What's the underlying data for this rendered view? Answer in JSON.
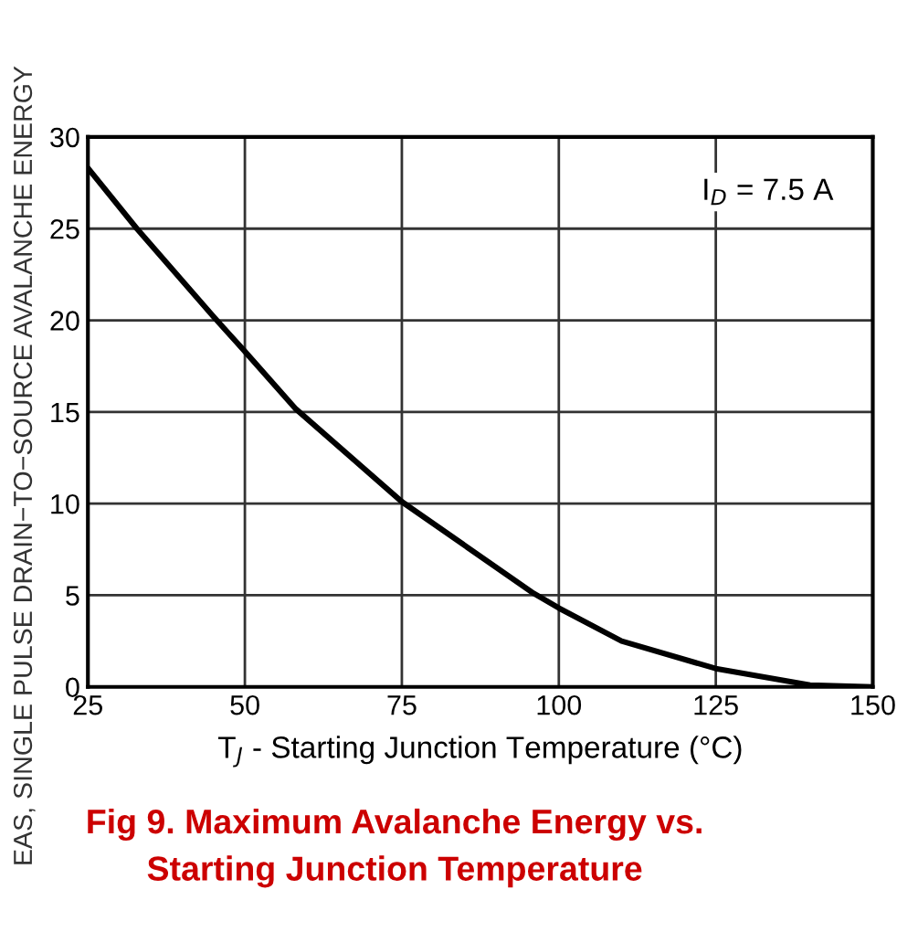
{
  "chart_data": {
    "type": "line",
    "title": "Fig 9. Maximum Avalanche Energy vs.\nStarting Junction Temperature",
    "xlabel": "T$_{J}$ - Starting Junction Temperature (°C)",
    "ylabel": "EAS, SINGLE PULSE DRAIN−TO−SOURCE AVALANCHE ENERGY",
    "annotations": [
      "I$_{D}$ = 7.5 A"
    ],
    "x": [
      25,
      32.8,
      45,
      50,
      58,
      75,
      96,
      100,
      110,
      125,
      140,
      150
    ],
    "series": [
      {
        "color": "#000000",
        "values": [
          28.3,
          25,
          20.2,
          18.3,
          15.2,
          10.1,
          5.1,
          4.3,
          2.5,
          1.0,
          0.1,
          0
        ]
      }
    ],
    "xlim": [
      25,
      150
    ],
    "xticks": [
      25,
      50,
      75,
      100,
      125,
      150
    ],
    "ylim": [
      0,
      30
    ],
    "yticks": [
      0,
      5,
      10,
      15,
      20,
      25,
      30
    ],
    "grid": true,
    "legend": false,
    "marker": "none",
    "line_style": "solid"
  }
}
